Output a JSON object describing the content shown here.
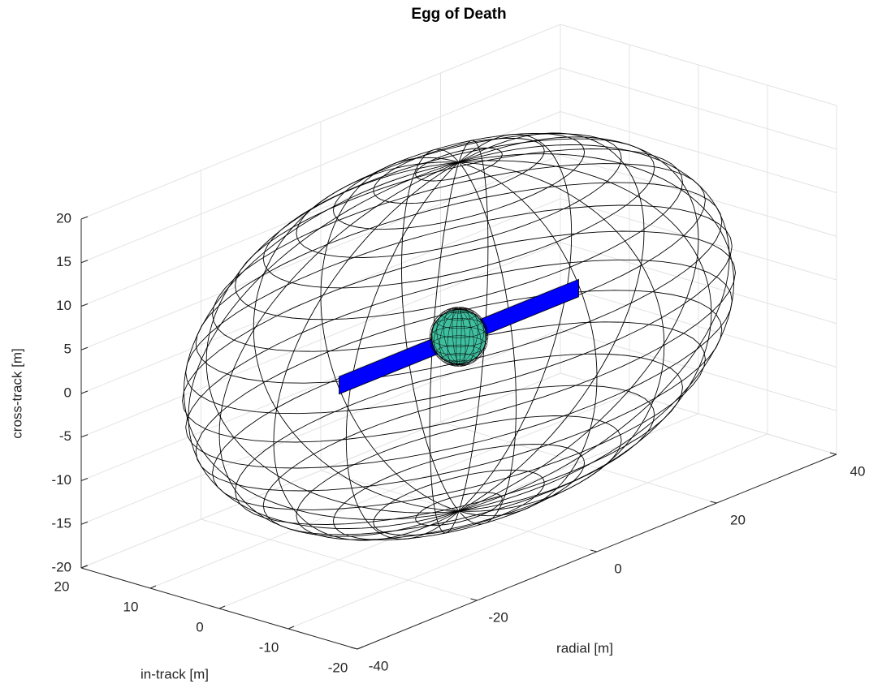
{
  "chart_data": {
    "type": "wireframe3d",
    "title": "Egg of Death",
    "xlabel": "in-track [m]",
    "ylabel": "radial [m]",
    "zlabel": "cross-track [m]",
    "xlim": [
      -20,
      20
    ],
    "xticks": [
      -20,
      -10,
      0,
      10,
      20
    ],
    "ylim": [
      -40,
      40
    ],
    "yticks": [
      -40,
      -20,
      0,
      20,
      40
    ],
    "zlim": [
      -20,
      20
    ],
    "zticks": [
      -20,
      -15,
      -10,
      -5,
      0,
      5,
      10,
      15,
      20
    ],
    "grid": true,
    "ellipsoid": {
      "center": [
        0,
        0,
        0
      ],
      "radii": [
        20,
        40,
        20
      ],
      "color": "#000000"
    },
    "satellite": {
      "radius": 3.2,
      "color": "#3fbf9f",
      "panel_length": 40,
      "panel_width": 2,
      "panel_color": "#0000ff"
    }
  }
}
